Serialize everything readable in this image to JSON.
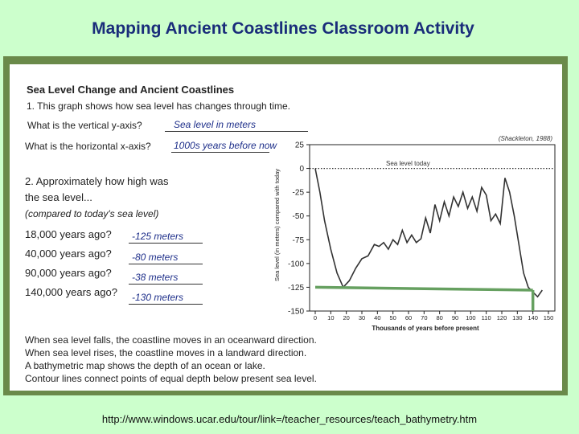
{
  "slide_title": "Mapping Ancient Coastlines Classroom Activity",
  "worksheet": {
    "heading": "Sea Level Change and Ancient Coastlines",
    "q1": "1. This graph shows how sea level has changes through time.",
    "q1a": {
      "prompt": "What is the vertical y-axis?",
      "answer": "Sea level in meters"
    },
    "q1b": {
      "prompt": "What is the horizontal x-axis?",
      "answer": "1000s years before now"
    },
    "q2_line1": "2. Approximately how high was",
    "q2_line2": "the sea level...",
    "q2_line3": "(compared to today's sea level)",
    "rows": [
      {
        "prompt": "18,000 years ago?",
        "answer": "-125 meters"
      },
      {
        "prompt": "40,000 years ago?",
        "answer": "-80 meters"
      },
      {
        "prompt": "90,000 years ago?",
        "answer": "-38 meters"
      },
      {
        "prompt": "140,000 years ago?",
        "answer": "-130 meters"
      }
    ],
    "notes": [
      "When sea level falls, the coastline moves in an oceanward direction.",
      "When sea level rises, the coastline moves in a landward direction.",
      "A bathymetric map shows the depth of an ocean or lake.",
      "Contour lines connect points of equal depth below present sea level."
    ]
  },
  "chart_data": {
    "type": "line",
    "title": "",
    "source": "(Shackleton, 1988)",
    "xlabel": "Thousands of years before present",
    "ylabel": "Sea level (in meters) compared with today",
    "xlim": [
      0,
      150
    ],
    "ylim": [
      -150,
      25
    ],
    "x_ticks": [
      0,
      10,
      20,
      30,
      40,
      50,
      60,
      70,
      80,
      90,
      100,
      110,
      120,
      130,
      140,
      150
    ],
    "y_ticks": [
      25,
      0,
      -25,
      -50,
      -75,
      -100,
      -125,
      -150
    ],
    "reference_line": {
      "y": 0,
      "label": "Sea level today"
    },
    "grid": false,
    "series": [
      {
        "x": [
          0,
          3,
          6,
          10,
          14,
          18,
          22,
          26,
          30,
          34,
          38,
          41,
          44,
          47,
          50,
          53,
          56,
          59,
          62,
          65,
          68,
          71,
          74,
          77,
          80,
          83,
          86,
          89,
          92,
          95,
          98,
          101,
          104,
          107,
          110,
          113,
          116,
          119,
          122,
          125,
          128,
          131,
          134,
          137,
          140,
          143,
          146
        ],
        "y": [
          0,
          -25,
          -55,
          -85,
          -110,
          -125,
          -118,
          -105,
          -95,
          -92,
          -80,
          -82,
          -78,
          -85,
          -75,
          -80,
          -65,
          -78,
          -70,
          -78,
          -74,
          -52,
          -68,
          -38,
          -55,
          -35,
          -50,
          -30,
          -40,
          -25,
          -42,
          -30,
          -45,
          -20,
          -28,
          -55,
          -48,
          -58,
          -10,
          -25,
          -50,
          -80,
          -110,
          -125,
          -130,
          -135,
          -128
        ]
      }
    ],
    "annotation_lines": [
      {
        "x": [
          0,
          140
        ],
        "y": [
          -125,
          -128
        ]
      },
      {
        "x": [
          140,
          140
        ],
        "y": [
          -128,
          -150
        ]
      }
    ]
  }
}
